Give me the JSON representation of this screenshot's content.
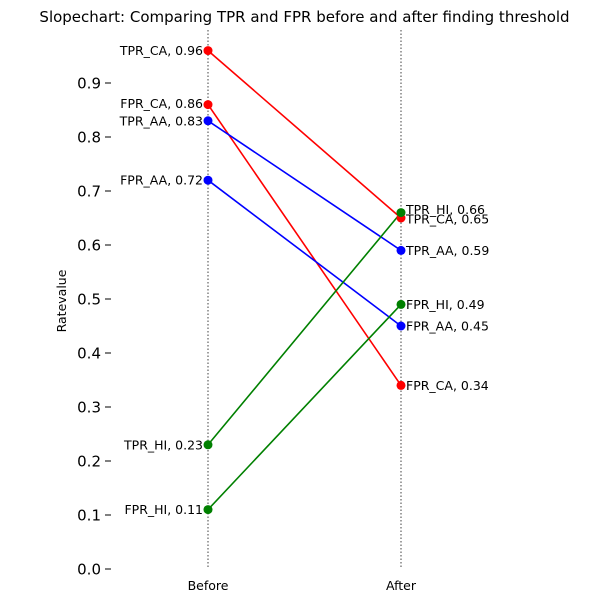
{
  "chart_data": {
    "type": "line",
    "title": "Slopechart: Comparing TPR and FPR before and after finding threshold",
    "xlabel": "",
    "ylabel": "Ratevalue",
    "categories": [
      "Before",
      "After"
    ],
    "ylim": [
      0.0,
      1.0
    ],
    "yticks": [
      "0.0",
      "0.1",
      "0.2",
      "0.3",
      "0.4",
      "0.5",
      "0.6",
      "0.7",
      "0.8",
      "0.9"
    ],
    "grid": false,
    "series": [
      {
        "name": "TPR_CA",
        "color": "#ff0000",
        "values": [
          0.96,
          0.65
        ],
        "labels": [
          "TPR_CA, 0.96",
          "TPR_CA, 0.65"
        ]
      },
      {
        "name": "FPR_CA",
        "color": "#ff0000",
        "values": [
          0.86,
          0.34
        ],
        "labels": [
          "FPR_CA, 0.86",
          "FPR_CA, 0.34"
        ]
      },
      {
        "name": "TPR_AA",
        "color": "#0000ff",
        "values": [
          0.83,
          0.59
        ],
        "labels": [
          "TPR_AA, 0.83",
          "TPR_AA, 0.59"
        ]
      },
      {
        "name": "FPR_AA",
        "color": "#0000ff",
        "values": [
          0.72,
          0.45
        ],
        "labels": [
          "FPR_AA, 0.72",
          "FPR_AA, 0.45"
        ]
      },
      {
        "name": "TPR_HI",
        "color": "#008000",
        "values": [
          0.23,
          0.66
        ],
        "labels": [
          "TPR_HI, 0.23",
          "TPR_HI, 0.66"
        ]
      },
      {
        "name": "FPR_HI",
        "color": "#008000",
        "values": [
          0.11,
          0.49
        ],
        "labels": [
          "FPR_HI, 0.11",
          "FPR_HI, 0.49"
        ]
      }
    ]
  }
}
